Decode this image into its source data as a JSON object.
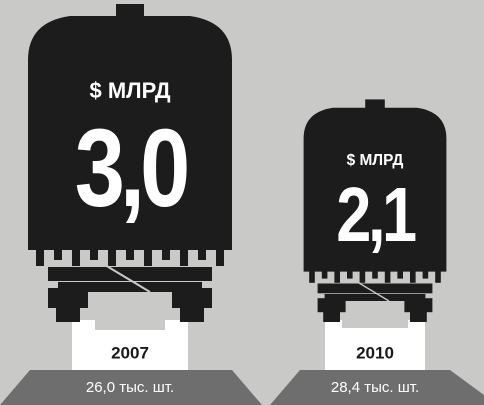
{
  "chart_data": {
    "type": "pictogram",
    "categories": [
      "2007",
      "2010"
    ],
    "values": [
      3.0,
      2.1
    ],
    "value_labels": [
      "3,0",
      "2,1"
    ],
    "unit_label": "$ МЛРД",
    "notes": [
      "26,0 тыс. шт.",
      "28,4 тыс. шт."
    ],
    "color": "#1c1c1c"
  }
}
